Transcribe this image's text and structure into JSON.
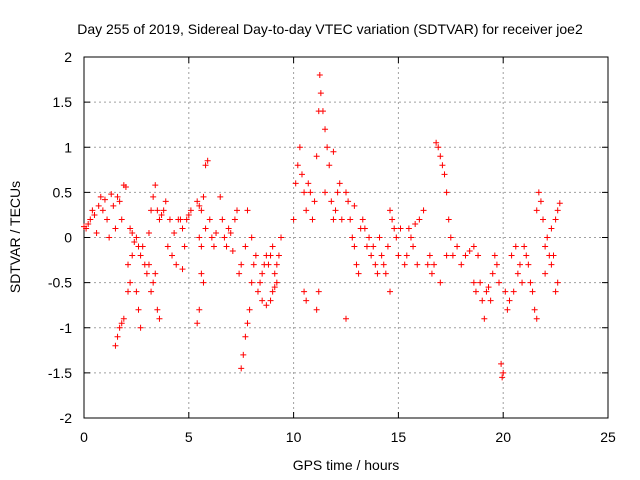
{
  "chart_data": {
    "type": "scatter",
    "title": "Day 255 of 2019, Sidereal Day-to-day VTEC variation (SDTVAR) for receiver joe2",
    "xlabel": "GPS time / hours",
    "ylabel": "SDTVAR / TECUs",
    "xlim": [
      0,
      25
    ],
    "ylim": [
      -2,
      2
    ],
    "xticks": [
      0,
      5,
      10,
      15,
      20,
      25
    ],
    "xtick_labels": [
      "0",
      "5",
      "10",
      "15",
      "20",
      "25"
    ],
    "yticks": [
      -2,
      -1.5,
      -1,
      -0.5,
      0,
      0.5,
      1,
      1.5,
      2
    ],
    "ytick_labels": [
      "-2",
      "-1.5",
      "-1",
      "-0.5",
      "0",
      "0.5",
      "1",
      "1.5",
      "2"
    ],
    "grid": true,
    "marker": "+",
    "marker_color": "#ff0000",
    "series": [
      {
        "name": "SDTVAR",
        "points": [
          [
            0.0,
            0.12
          ],
          [
            0.1,
            0.1
          ],
          [
            0.2,
            0.15
          ],
          [
            0.3,
            0.2
          ],
          [
            0.4,
            0.3
          ],
          [
            0.5,
            0.25
          ],
          [
            0.6,
            0.05
          ],
          [
            0.7,
            0.35
          ],
          [
            0.8,
            0.45
          ],
          [
            0.9,
            0.3
          ],
          [
            1.0,
            0.42
          ],
          [
            1.1,
            0.2
          ],
          [
            1.2,
            0.0
          ],
          [
            1.3,
            0.48
          ],
          [
            1.4,
            0.35
          ],
          [
            1.5,
            0.1
          ],
          [
            1.6,
            0.45
          ],
          [
            1.7,
            0.4
          ],
          [
            1.8,
            0.2
          ],
          [
            1.9,
            0.58
          ],
          [
            2.0,
            0.56
          ],
          [
            1.5,
            -1.2
          ],
          [
            1.6,
            -1.1
          ],
          [
            1.7,
            -1.0
          ],
          [
            1.8,
            -0.95
          ],
          [
            1.9,
            -0.9
          ],
          [
            2.1,
            -0.6
          ],
          [
            2.2,
            -0.5
          ],
          [
            2.3,
            -0.2
          ],
          [
            2.1,
            -0.3
          ],
          [
            2.2,
            0.1
          ],
          [
            2.3,
            0.05
          ],
          [
            2.4,
            -0.05
          ],
          [
            2.5,
            0.0
          ],
          [
            2.6,
            -0.1
          ],
          [
            2.7,
            -0.2
          ],
          [
            2.8,
            -0.1
          ],
          [
            2.5,
            -0.6
          ],
          [
            2.6,
            -0.8
          ],
          [
            2.7,
            -1.0
          ],
          [
            2.9,
            -0.3
          ],
          [
            3.0,
            -0.4
          ],
          [
            3.1,
            -0.3
          ],
          [
            3.2,
            -0.6
          ],
          [
            3.3,
            -0.5
          ],
          [
            3.1,
            0.05
          ],
          [
            3.2,
            0.3
          ],
          [
            3.3,
            0.45
          ],
          [
            3.4,
            0.58
          ],
          [
            3.5,
            0.3
          ],
          [
            3.5,
            -0.8
          ],
          [
            3.6,
            -0.9
          ],
          [
            3.4,
            -0.4
          ],
          [
            3.6,
            0.2
          ],
          [
            3.7,
            0.25
          ],
          [
            3.8,
            0.3
          ],
          [
            3.9,
            0.4
          ],
          [
            4.0,
            -0.1
          ],
          [
            4.1,
            0.2
          ],
          [
            4.2,
            -0.2
          ],
          [
            4.3,
            0.05
          ],
          [
            4.4,
            -0.3
          ],
          [
            4.5,
            0.2
          ],
          [
            4.6,
            0.2
          ],
          [
            4.7,
            0.1
          ],
          [
            4.8,
            -0.1
          ],
          [
            4.9,
            0.2
          ],
          [
            5.0,
            0.25
          ],
          [
            5.1,
            0.3
          ],
          [
            4.7,
            -0.35
          ],
          [
            5.4,
            0.4
          ],
          [
            5.5,
            0.35
          ],
          [
            5.6,
            0.3
          ],
          [
            5.7,
            0.45
          ],
          [
            5.8,
            0.8
          ],
          [
            5.9,
            0.85
          ],
          [
            5.7,
            -0.5
          ],
          [
            5.6,
            -0.4
          ],
          [
            5.5,
            -0.8
          ],
          [
            5.4,
            -0.95
          ],
          [
            5.5,
            0.0
          ],
          [
            5.6,
            -0.1
          ],
          [
            5.8,
            0.1
          ],
          [
            6.0,
            0.2
          ],
          [
            6.1,
            0.0
          ],
          [
            6.2,
            -0.1
          ],
          [
            6.3,
            0.05
          ],
          [
            6.5,
            0.45
          ],
          [
            6.6,
            0.2
          ],
          [
            6.7,
            0.0
          ],
          [
            6.8,
            -0.1
          ],
          [
            6.9,
            0.1
          ],
          [
            7.0,
            0.05
          ],
          [
            7.1,
            -0.15
          ],
          [
            7.2,
            0.2
          ],
          [
            7.3,
            0.3
          ],
          [
            7.4,
            -0.4
          ],
          [
            7.5,
            -0.3
          ],
          [
            7.5,
            -1.45
          ],
          [
            7.6,
            -1.3
          ],
          [
            7.7,
            -1.1
          ],
          [
            7.8,
            -0.95
          ],
          [
            7.9,
            -0.8
          ],
          [
            8.0,
            -0.5
          ],
          [
            8.1,
            -0.3
          ],
          [
            8.2,
            -0.2
          ],
          [
            7.7,
            -0.1
          ],
          [
            8.0,
            0.0
          ],
          [
            7.8,
            0.3
          ],
          [
            8.3,
            -0.6
          ],
          [
            8.4,
            -0.5
          ],
          [
            8.5,
            -0.4
          ],
          [
            8.6,
            -0.3
          ],
          [
            8.7,
            -0.2
          ],
          [
            8.8,
            -0.3
          ],
          [
            8.9,
            -0.2
          ],
          [
            9.0,
            -0.1
          ],
          [
            8.5,
            -0.7
          ],
          [
            8.7,
            -0.75
          ],
          [
            9.0,
            -0.6
          ],
          [
            9.1,
            -0.4
          ],
          [
            9.2,
            -0.5
          ],
          [
            9.3,
            -0.2
          ],
          [
            9.4,
            0.0
          ],
          [
            9.2,
            -0.3
          ],
          [
            9.1,
            -0.55
          ],
          [
            8.9,
            -0.7
          ],
          [
            10.0,
            0.2
          ],
          [
            10.1,
            0.6
          ],
          [
            10.2,
            0.8
          ],
          [
            10.3,
            1.0
          ],
          [
            10.4,
            0.7
          ],
          [
            10.5,
            0.5
          ],
          [
            10.6,
            0.3
          ],
          [
            10.7,
            0.6
          ],
          [
            10.8,
            0.5
          ],
          [
            10.9,
            0.2
          ],
          [
            10.5,
            -0.6
          ],
          [
            10.6,
            -0.7
          ],
          [
            11.0,
            0.4
          ],
          [
            11.1,
            0.9
          ],
          [
            11.2,
            1.4
          ],
          [
            11.25,
            1.8
          ],
          [
            11.3,
            1.6
          ],
          [
            11.4,
            1.4
          ],
          [
            11.5,
            1.2
          ],
          [
            11.6,
            1.0
          ],
          [
            11.1,
            -0.8
          ],
          [
            11.2,
            -0.6
          ],
          [
            11.5,
            0.5
          ],
          [
            11.7,
            0.8
          ],
          [
            11.8,
            0.4
          ],
          [
            11.9,
            0.2
          ],
          [
            12.0,
            0.3
          ],
          [
            12.1,
            0.5
          ],
          [
            12.2,
            0.6
          ],
          [
            12.3,
            0.2
          ],
          [
            11.9,
            0.95
          ],
          [
            12.5,
            0.5
          ],
          [
            12.6,
            0.4
          ],
          [
            12.7,
            0.2
          ],
          [
            12.8,
            0.0
          ],
          [
            12.9,
            -0.1
          ],
          [
            13.0,
            -0.3
          ],
          [
            13.1,
            -0.4
          ],
          [
            13.2,
            0.1
          ],
          [
            13.3,
            0.2
          ],
          [
            12.9,
            0.35
          ],
          [
            12.5,
            -0.9
          ],
          [
            13.4,
            0.1
          ],
          [
            13.5,
            -0.1
          ],
          [
            13.6,
            0.0
          ],
          [
            13.7,
            -0.2
          ],
          [
            13.8,
            -0.1
          ],
          [
            13.9,
            -0.3
          ],
          [
            14.0,
            -0.4
          ],
          [
            14.1,
            0.0
          ],
          [
            14.2,
            -0.2
          ],
          [
            14.3,
            -0.3
          ],
          [
            14.4,
            -0.4
          ],
          [
            14.5,
            -0.1
          ],
          [
            14.6,
            0.3
          ],
          [
            14.7,
            0.2
          ],
          [
            14.8,
            0.1
          ],
          [
            14.9,
            0.0
          ],
          [
            15.0,
            -0.2
          ],
          [
            15.1,
            0.1
          ],
          [
            14.6,
            -0.6
          ],
          [
            15.3,
            -0.3
          ],
          [
            15.4,
            -0.2
          ],
          [
            15.5,
            0.1
          ],
          [
            15.6,
            0.0
          ],
          [
            15.7,
            -0.1
          ],
          [
            15.8,
            0.15
          ],
          [
            15.9,
            -0.3
          ],
          [
            16.0,
            0.2
          ],
          [
            16.2,
            0.3
          ],
          [
            16.4,
            -0.3
          ],
          [
            16.5,
            -0.2
          ],
          [
            16.6,
            -0.4
          ],
          [
            16.7,
            -0.3
          ],
          [
            16.8,
            1.05
          ],
          [
            16.9,
            1.0
          ],
          [
            17.0,
            0.9
          ],
          [
            17.1,
            0.8
          ],
          [
            17.2,
            0.7
          ],
          [
            17.3,
            0.5
          ],
          [
            17.4,
            0.2
          ],
          [
            17.5,
            0.0
          ],
          [
            17.3,
            -0.2
          ],
          [
            17.0,
            -0.5
          ],
          [
            17.6,
            -0.2
          ],
          [
            17.8,
            -0.1
          ],
          [
            18.0,
            -0.3
          ],
          [
            18.2,
            -0.2
          ],
          [
            18.4,
            -0.15
          ],
          [
            18.6,
            -0.1
          ],
          [
            18.8,
            -0.2
          ],
          [
            18.9,
            -0.5
          ],
          [
            19.0,
            -0.7
          ],
          [
            19.1,
            -0.9
          ],
          [
            18.6,
            -0.5
          ],
          [
            18.7,
            -0.6
          ],
          [
            19.2,
            -0.6
          ],
          [
            19.3,
            -0.55
          ],
          [
            19.4,
            -0.7
          ],
          [
            19.5,
            -0.4
          ],
          [
            19.6,
            -0.2
          ],
          [
            19.7,
            -0.3
          ],
          [
            19.8,
            -0.5
          ],
          [
            19.9,
            -1.4
          ],
          [
            19.95,
            -1.55
          ],
          [
            20.0,
            -1.5
          ],
          [
            20.1,
            -0.6
          ],
          [
            20.2,
            -0.8
          ],
          [
            20.3,
            -0.7
          ],
          [
            20.4,
            -0.2
          ],
          [
            20.5,
            -0.6
          ],
          [
            20.6,
            -0.1
          ],
          [
            20.7,
            -0.4
          ],
          [
            20.8,
            -0.3
          ],
          [
            20.9,
            -0.5
          ],
          [
            21.0,
            -0.1
          ],
          [
            21.1,
            -0.2
          ],
          [
            21.2,
            -0.3
          ],
          [
            21.3,
            -0.5
          ],
          [
            21.4,
            -0.6
          ],
          [
            21.5,
            -0.8
          ],
          [
            21.6,
            -0.9
          ],
          [
            21.7,
            0.5
          ],
          [
            21.6,
            0.3
          ],
          [
            21.8,
            0.4
          ],
          [
            21.9,
            0.2
          ],
          [
            22.0,
            -0.1
          ],
          [
            22.1,
            0.0
          ],
          [
            22.2,
            -0.2
          ],
          [
            22.3,
            -0.3
          ],
          [
            22.4,
            -0.2
          ],
          [
            22.5,
            0.2
          ],
          [
            22.6,
            0.3
          ],
          [
            22.7,
            0.38
          ],
          [
            22.5,
            -0.6
          ],
          [
            22.6,
            -0.5
          ],
          [
            22.3,
            0.1
          ],
          [
            22.0,
            -0.4
          ]
        ]
      }
    ]
  }
}
